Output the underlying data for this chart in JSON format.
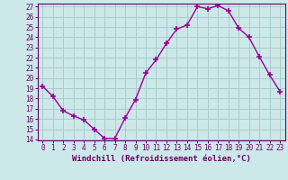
{
  "x": [
    0,
    1,
    2,
    3,
    4,
    5,
    6,
    7,
    8,
    9,
    10,
    11,
    12,
    13,
    14,
    15,
    16,
    17,
    18,
    19,
    20,
    21,
    22,
    23
  ],
  "y": [
    19.2,
    18.2,
    16.8,
    16.3,
    15.9,
    15.0,
    14.1,
    14.1,
    16.1,
    17.9,
    20.5,
    21.8,
    23.4,
    24.8,
    25.2,
    27.0,
    26.8,
    27.1,
    26.6,
    24.9,
    24.0,
    22.1,
    20.3,
    18.7
  ],
  "line_color": "#990099",
  "marker": "+",
  "marker_size": 4,
  "marker_lw": 1.2,
  "bg_color": "#cce8e8",
  "grid_color": "#aacccc",
  "xlabel": "Windchill (Refroidissement éolien,°C)",
  "ylim": [
    14,
    27
  ],
  "xlim": [
    -0.5,
    23.5
  ],
  "yticks": [
    14,
    15,
    16,
    17,
    18,
    19,
    20,
    21,
    22,
    23,
    24,
    25,
    26,
    27
  ],
  "xticks": [
    0,
    1,
    2,
    3,
    4,
    5,
    6,
    7,
    8,
    9,
    10,
    11,
    12,
    13,
    14,
    15,
    16,
    17,
    18,
    19,
    20,
    21,
    22,
    23
  ],
  "tick_fontsize": 5.5,
  "xlabel_fontsize": 6.5,
  "tick_color": "#660066",
  "spine_color": "#660066",
  "line_width": 1.0
}
